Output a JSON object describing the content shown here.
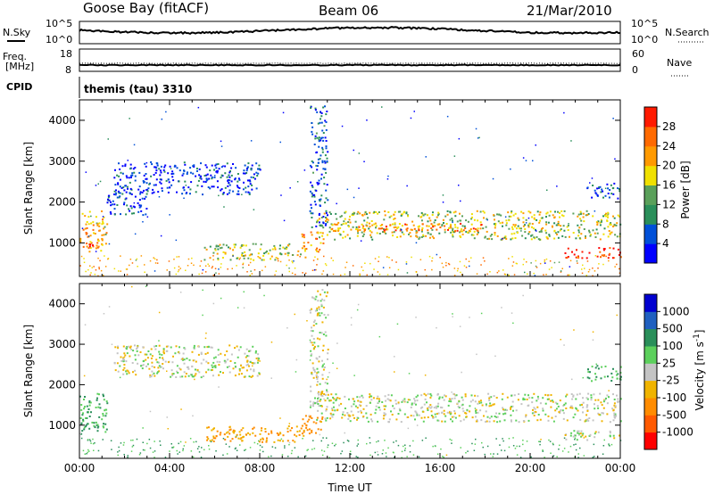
{
  "header": {
    "station": "Goose Bay (fitACF)",
    "beam": "Beam 06",
    "date": "21/Mar/2010"
  },
  "status_panels": {
    "nsky": {
      "label": "N.Sky",
      "ticks": [
        "10^5",
        "10^0"
      ]
    },
    "nsearch": {
      "label": "N.Search",
      "ticks": [
        "10^5",
        "10^0"
      ]
    },
    "freq": {
      "label_line1": "Freq.",
      "label_line2": "[MHz]",
      "ticks": [
        "18",
        "8"
      ]
    },
    "nave": {
      "label": "Nave",
      "ticks": [
        "60",
        "0"
      ]
    },
    "cpid": {
      "label": "CPID",
      "program": "themis (tau) 3310"
    }
  },
  "colors": {
    "power": [
      "#0000ff",
      "#0050d8",
      "#2a8f5a",
      "#5aa05a",
      "#f0e000",
      "#ff9a00",
      "#ff6a00",
      "#ff1a00",
      "#ff0000"
    ],
    "velocity": [
      "#ff0000",
      "#ff5a00",
      "#ff8c00",
      "#f0b400",
      "#c4c4c4",
      "#5cd05c",
      "#2a8f5a",
      "#2060c0",
      "#0000d0"
    ]
  },
  "chart_data": [
    {
      "type": "heatmap",
      "name": "power",
      "ylabel": "Slant Range [km]",
      "xlim": [
        "00:00",
        "24:00"
      ],
      "ylim": [
        180,
        4500
      ],
      "yticks": [
        1000,
        2000,
        3000,
        4000
      ],
      "colorbar": {
        "label": "Power [dB]",
        "ticks": [
          "4",
          "8",
          "12",
          "16",
          "20",
          "24",
          "28"
        ]
      },
      "echo_regions": [
        {
          "t0": 0.0,
          "t1": 1.2,
          "r0": 800,
          "r1": 1800,
          "value": 18
        },
        {
          "t0": 0.2,
          "t1": 0.8,
          "r0": 900,
          "r1": 1100,
          "value": 24
        },
        {
          "t0": 1.5,
          "t1": 8.0,
          "r0": 2200,
          "r1": 3000,
          "value": 4
        },
        {
          "t0": 1.2,
          "t1": 3.0,
          "r0": 1700,
          "r1": 2300,
          "value": 4
        },
        {
          "t0": 5.5,
          "t1": 10.0,
          "r0": 600,
          "r1": 1000,
          "value": 14
        },
        {
          "t0": 9.8,
          "t1": 10.8,
          "r0": 800,
          "r1": 1300,
          "value": 20
        },
        {
          "t0": 10.2,
          "t1": 11.0,
          "r0": 1400,
          "r1": 4400,
          "value": 6
        },
        {
          "t0": 10.5,
          "t1": 24.0,
          "r0": 1100,
          "r1": 1800,
          "value": 14
        },
        {
          "t0": 11.0,
          "t1": 18.0,
          "r0": 1300,
          "r1": 1500,
          "value": 20
        },
        {
          "t0": 21.5,
          "t1": 24.0,
          "r0": 650,
          "r1": 900,
          "value": 26
        },
        {
          "t0": 22.5,
          "t1": 24.0,
          "r0": 2100,
          "r1": 2500,
          "value": 4
        }
      ]
    },
    {
      "type": "heatmap",
      "name": "velocity",
      "xlabel": "Time UT",
      "ylabel": "Slant Range [km]",
      "xlim": [
        "00:00",
        "24:00"
      ],
      "ylim": [
        180,
        4500
      ],
      "xticks": [
        "00:00",
        "04:00",
        "08:00",
        "12:00",
        "16:00",
        "20:00",
        "00:00"
      ],
      "yticks": [
        1000,
        2000,
        3000,
        4000
      ],
      "colorbar": {
        "label": "Velocity [m s-1]",
        "ticks": [
          "1000",
          "500",
          "100",
          "25",
          "-25",
          "-100",
          "-500",
          "-1000"
        ]
      },
      "echo_regions": [
        {
          "t0": 0.0,
          "t1": 1.2,
          "r0": 800,
          "r1": 1800,
          "value": 100
        },
        {
          "t0": 0.2,
          "t1": 0.8,
          "r0": 900,
          "r1": 1100,
          "value": 200
        },
        {
          "t0": 1.5,
          "t1": 8.0,
          "r0": 2200,
          "r1": 3000,
          "value": 0
        },
        {
          "t0": 5.5,
          "t1": 10.0,
          "r0": 600,
          "r1": 1000,
          "value": -100
        },
        {
          "t0": 9.8,
          "t1": 10.8,
          "r0": 800,
          "r1": 1300,
          "value": -200
        },
        {
          "t0": 10.2,
          "t1": 11.0,
          "r0": 1400,
          "r1": 4400,
          "value": 0
        },
        {
          "t0": 10.5,
          "t1": 24.0,
          "r0": 1100,
          "r1": 1800,
          "value": 0
        },
        {
          "t0": 21.5,
          "t1": 24.0,
          "r0": 650,
          "r1": 900,
          "value": 0
        },
        {
          "t0": 22.5,
          "t1": 24.0,
          "r0": 2100,
          "r1": 2500,
          "value": 100
        }
      ]
    }
  ]
}
